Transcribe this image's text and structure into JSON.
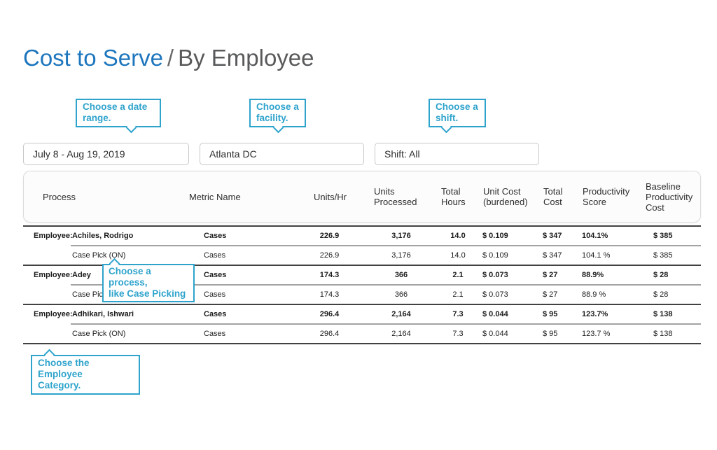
{
  "title": {
    "primary": "Cost to Serve",
    "separator": "/",
    "secondary": "By Employee"
  },
  "callouts": {
    "date_range": {
      "line1": "Choose a date",
      "line2": "range."
    },
    "facility": {
      "line1": "Choose a",
      "line2": "facility."
    },
    "shift": {
      "line1": "Choose a",
      "line2": "shift."
    },
    "process": {
      "line1": "Choose a process,",
      "line2": "like Case Picking"
    },
    "employee_category": {
      "line1": "Choose the Employee",
      "line2": "Category."
    }
  },
  "filters": {
    "date_range": "July 8 - Aug 19, 2019",
    "facility": "Atlanta DC",
    "shift": "Shift: All"
  },
  "table": {
    "row_label": "Employee:",
    "columns": [
      "Process",
      "Metric Name",
      "Units/Hr",
      "Units Processed",
      "Total Hours",
      "Unit Cost (burdened)",
      "Total Cost",
      "Productivity Score",
      "Baseline Productivity Cost"
    ],
    "groups": [
      {
        "employee": {
          "process": "Achiles, Rodrigo",
          "metric": "Cases",
          "units_hr": "226.9",
          "units_processed": "3,176",
          "total_hours": "14.0",
          "unit_cost": "$ 0.109",
          "total_cost": "$ 347",
          "productivity": "104.1%",
          "baseline": "$ 385"
        },
        "detail": {
          "process": "Case Pick (ON)",
          "metric": "Cases",
          "units_hr": "226.9",
          "units_processed": "3,176",
          "total_hours": "14.0",
          "unit_cost": "$ 0.109",
          "total_cost": "$ 347",
          "productivity": "104.1 %",
          "baseline": "$ 385"
        }
      },
      {
        "employee": {
          "process": "Adey",
          "metric": "Cases",
          "units_hr": "174.3",
          "units_processed": "366",
          "total_hours": "2.1",
          "unit_cost": "$ 0.073",
          "total_cost": "$ 27",
          "productivity": "88.9%",
          "baseline": "$ 28"
        },
        "detail": {
          "process": "Case Pick (ON)",
          "metric": "Cases",
          "units_hr": "174.3",
          "units_processed": "366",
          "total_hours": "2.1",
          "unit_cost": "$ 0.073",
          "total_cost": "$ 27",
          "productivity": "88.9 %",
          "baseline": "$ 28"
        }
      },
      {
        "employee": {
          "process": "Adhikari, Ishwari",
          "metric": "Cases",
          "units_hr": "296.4",
          "units_processed": "2,164",
          "total_hours": "7.3",
          "unit_cost": "$ 0.044",
          "total_cost": "$ 95",
          "productivity": "123.7%",
          "baseline": "$ 138"
        },
        "detail": {
          "process": "Case Pick (ON)",
          "metric": "Cases",
          "units_hr": "296.4",
          "units_processed": "2,164",
          "total_hours": "7.3",
          "unit_cost": "$ 0.044",
          "total_cost": "$ 95",
          "productivity": "123.7 %",
          "baseline": "$ 138"
        }
      }
    ]
  },
  "colors": {
    "accent_blue": "#1d76bd",
    "accent_teal": "#2ea3cc",
    "title_gray": "#58595b"
  }
}
